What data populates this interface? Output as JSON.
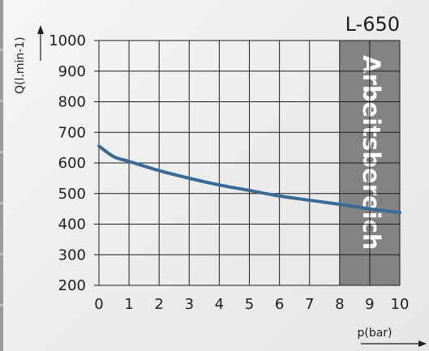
{
  "chart_data": {
    "type": "line",
    "title": "L-650",
    "xlabel": "p(bar)",
    "ylabel": "Q(l.min-1)",
    "xlim": [
      0,
      10
    ],
    "ylim": [
      200,
      1000
    ],
    "x_ticks": [
      0,
      1,
      2,
      3,
      4,
      5,
      6,
      7,
      8,
      9,
      10
    ],
    "y_ticks": [
      200,
      300,
      400,
      500,
      600,
      700,
      800,
      900,
      1000
    ],
    "grid": true,
    "highlight_band": {
      "from": 8,
      "to": 10,
      "label": "Arbeitsbereich"
    },
    "series": [
      {
        "x": [
          0,
          0.5,
          1,
          2,
          3,
          4,
          5,
          6,
          7,
          8,
          9,
          10
        ],
        "y": [
          655,
          620,
          605,
          575,
          550,
          528,
          510,
          492,
          478,
          465,
          450,
          438
        ]
      }
    ]
  },
  "colors": {
    "line": "#3a6b96",
    "band": "#838383",
    "grid": "#1e1e1e",
    "text": "#1e1e1e"
  }
}
